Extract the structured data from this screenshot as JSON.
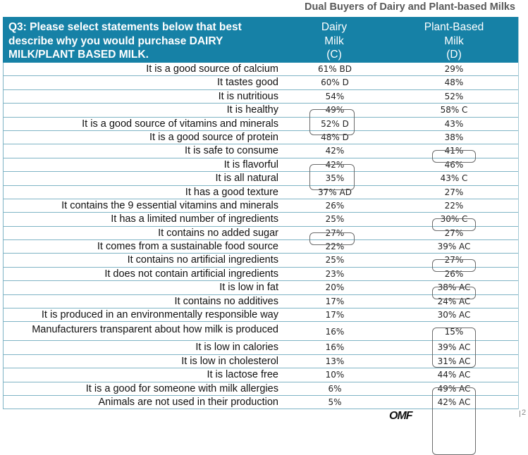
{
  "subtitle": "Dual Buyers of Dairy and Plant-based Milks",
  "header": {
    "question": [
      "Q3:  Please select statements below that best",
      "describe why you would purchase DAIRY",
      "MILK/PLANT BASED MILK."
    ],
    "col1": [
      "Dairy",
      "Milk",
      "(C)"
    ],
    "col2": [
      "Plant-Based",
      "Milk",
      "(D)"
    ]
  },
  "rows": [
    {
      "label": "It is a good source of calcium",
      "dairy": "61% BD",
      "plant": "29%"
    },
    {
      "label": "It tastes good",
      "dairy": "60% D",
      "plant": "48%"
    },
    {
      "label": "It is nutritious",
      "dairy": "54%",
      "plant": "52%"
    },
    {
      "label": "It is healthy",
      "dairy": "49%",
      "plant": "58% C"
    },
    {
      "label": "It is a good source of vitamins and minerals",
      "dairy": "52% D",
      "plant": "43%"
    },
    {
      "label": "It is a good source of protein",
      "dairy": "48% D",
      "plant": "38%"
    },
    {
      "label": "It is safe to consume",
      "dairy": "42%",
      "plant": "41%"
    },
    {
      "label": "It is flavorful",
      "dairy": "42%",
      "plant": "46%"
    },
    {
      "label": "It is all natural",
      "dairy": "35%",
      "plant": "43% C"
    },
    {
      "label": "It has a good texture",
      "dairy": "37% AD",
      "plant": "27%"
    },
    {
      "label": "It contains the 9 essential vitamins and minerals",
      "dairy": "26%",
      "plant": "22%"
    },
    {
      "label": "It has a limited number of ingredients",
      "dairy": "25%",
      "plant": "30% C"
    },
    {
      "label": "It contains no added sugar",
      "dairy": "27%",
      "plant": "27%"
    },
    {
      "label": "It comes from a sustainable food source",
      "dairy": "22%",
      "plant": "39% AC"
    },
    {
      "label": "It contains no artificial ingredients",
      "dairy": "25%",
      "plant": "27%"
    },
    {
      "label": "It does not contain artificial ingredients",
      "dairy": "23%",
      "plant": "26%"
    },
    {
      "label": "It is low in fat",
      "dairy": "20%",
      "plant": "38% AC"
    },
    {
      "label": "It contains no additives",
      "dairy": "17%",
      "plant": "24% AC"
    },
    {
      "label": "It is produced in an environmentally responsible way",
      "dairy": "17%",
      "plant": "30% AC"
    },
    {
      "label": "Manufacturers transparent about how milk is produced",
      "dairy": "16%",
      "plant": "15%"
    },
    {
      "label": "It is low in calories",
      "dairy": "16%",
      "plant": "39% AC"
    },
    {
      "label": "It is low in cholesterol",
      "dairy": "13%",
      "plant": "31% AC"
    },
    {
      "label": "It is lactose free",
      "dairy": "10%",
      "plant": "44% AC"
    },
    {
      "label": "It is a good for someone with milk allergies",
      "dairy": "6%",
      "plant": "49% AC"
    },
    {
      "label": "Animals are not used in their production",
      "dairy": "5%",
      "plant": "42% AC"
    }
  ],
  "footer": {
    "logo": "OMF",
    "page": "2"
  }
}
